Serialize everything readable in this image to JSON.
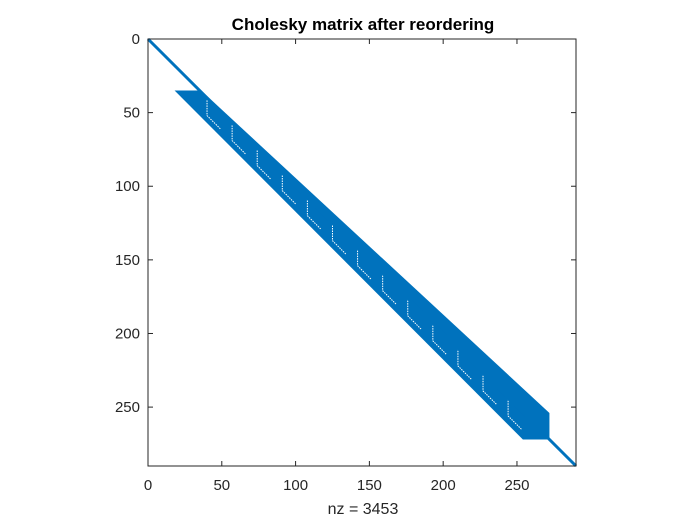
{
  "chart_data": {
    "type": "spy",
    "title": "Cholesky matrix after reordering",
    "xlabel": "nz = 3453",
    "ylabel": "",
    "matrix_size": 290,
    "xlim": [
      0,
      290
    ],
    "ylim": [
      0,
      290
    ],
    "y_axis_reversed": true,
    "x_ticks": [
      0,
      50,
      100,
      150,
      200,
      250
    ],
    "x_tick_labels": [
      "0",
      "50",
      "100",
      "150",
      "200",
      "250"
    ],
    "y_ticks": [
      0,
      50,
      100,
      150,
      200,
      250
    ],
    "y_tick_labels": [
      "0",
      "50",
      "100",
      "150",
      "200",
      "250"
    ],
    "nnz": 3453,
    "structure": {
      "diagonal_from": 0,
      "diagonal_to": 290,
      "band_start_row": 35,
      "band_start_col": 18,
      "band_end_row": 272,
      "band_end_col": 272,
      "band_width": 18,
      "block_size": 17,
      "block_boundaries": [
        35,
        52,
        69,
        86,
        103,
        120,
        137,
        154,
        171,
        188,
        205,
        222,
        239,
        256,
        272
      ]
    },
    "grid": false,
    "marker_color": "#0072BD"
  }
}
